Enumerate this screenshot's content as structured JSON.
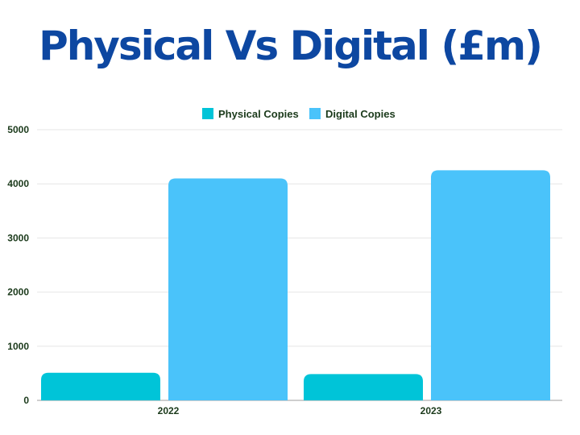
{
  "chart_data": {
    "type": "bar",
    "title": "Physical Vs Digital (£m)",
    "categories": [
      "2022",
      "2023"
    ],
    "series": [
      {
        "name": "Physical Copies",
        "color": "#00c4d8",
        "values": [
          510,
          485
        ]
      },
      {
        "name": "Digital Copies",
        "color": "#4ac3fa",
        "values": [
          4100,
          4250
        ]
      }
    ],
    "ylim": [
      0,
      5000
    ],
    "yticks": [
      0,
      1000,
      2000,
      3000,
      4000,
      5000
    ],
    "xlabel": "",
    "ylabel": "",
    "legend_position": "top-center",
    "grid": true
  }
}
